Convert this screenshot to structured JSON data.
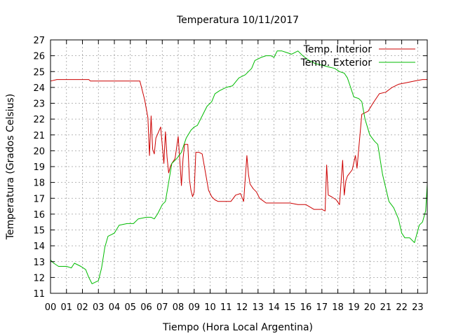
{
  "chart_data": {
    "type": "line",
    "title": "Temperatura 10/11/2017",
    "xlabel": "Tiempo (Hora Local Argentina)",
    "ylabel": "Temperatura (Grados Celsius)",
    "xlim": [
      0,
      23.6
    ],
    "ylim": [
      11,
      27
    ],
    "grid": true,
    "legend_position": "top-right",
    "x_ticks": [
      {
        "value": 0,
        "label": "00"
      },
      {
        "value": 1,
        "label": "01"
      },
      {
        "value": 2,
        "label": "02"
      },
      {
        "value": 3,
        "label": "03"
      },
      {
        "value": 4,
        "label": "04"
      },
      {
        "value": 5,
        "label": "05"
      },
      {
        "value": 6,
        "label": "06"
      },
      {
        "value": 7,
        "label": "07"
      },
      {
        "value": 8,
        "label": "08"
      },
      {
        "value": 9,
        "label": "09"
      },
      {
        "value": 10,
        "label": "10"
      },
      {
        "value": 11,
        "label": "11"
      },
      {
        "value": 12,
        "label": "12"
      },
      {
        "value": 13,
        "label": "13"
      },
      {
        "value": 14,
        "label": "14"
      },
      {
        "value": 15,
        "label": "15"
      },
      {
        "value": 16,
        "label": "16"
      },
      {
        "value": 17,
        "label": "17"
      },
      {
        "value": 18,
        "label": "18"
      },
      {
        "value": 19,
        "label": "19"
      },
      {
        "value": 20,
        "label": "20"
      },
      {
        "value": 21,
        "label": "21"
      },
      {
        "value": 22,
        "label": "22"
      },
      {
        "value": 23,
        "label": "23"
      }
    ],
    "y_ticks": [
      11,
      12,
      13,
      14,
      15,
      16,
      17,
      18,
      19,
      20,
      21,
      22,
      23,
      24,
      25,
      26,
      27
    ],
    "series": [
      {
        "name": "Temp. Interior",
        "color": "#cc0000",
        "x": [
          0,
          0.4,
          1.3,
          2.4,
          2.5,
          5.6,
          5.9,
          6.1,
          6.2,
          6.3,
          6.4,
          6.5,
          6.6,
          6.9,
          7.1,
          7.2,
          7.3,
          7.4,
          7.5,
          7.6,
          7.8,
          8.0,
          8.1,
          8.2,
          8.3,
          8.4,
          8.6,
          8.7,
          8.8,
          8.9,
          9.0,
          9.1,
          9.3,
          9.5,
          9.9,
          10.1,
          10.3,
          10.5,
          10.9,
          11.3,
          11.6,
          11.9,
          12.1,
          12.3,
          12.4,
          12.5,
          12.7,
          12.9,
          13.1,
          13.5,
          14.0,
          14.5,
          15.0,
          15.5,
          16.0,
          16.5,
          17.0,
          17.2,
          17.3,
          17.4,
          17.6,
          17.9,
          18.1,
          18.3,
          18.4,
          18.5,
          18.6,
          18.9,
          19.1,
          19.2,
          19.5,
          19.9,
          20.2,
          20.6,
          21.0,
          21.4,
          21.8,
          22.3,
          22.8,
          23.3,
          23.6
        ],
        "y": [
          24.4,
          24.5,
          24.5,
          24.5,
          24.4,
          24.4,
          23.2,
          22.1,
          19.7,
          22.2,
          20.1,
          19.8,
          20.8,
          21.5,
          19.2,
          21.2,
          19.6,
          18.6,
          19.0,
          19.2,
          19.5,
          20.9,
          19.4,
          17.8,
          19.5,
          20.4,
          20.4,
          18.2,
          17.5,
          17.1,
          17.4,
          19.9,
          19.9,
          19.8,
          17.5,
          17.1,
          16.9,
          16.8,
          16.8,
          16.8,
          17.2,
          17.3,
          16.8,
          19.7,
          18.5,
          17.9,
          17.6,
          17.4,
          17.0,
          16.7,
          16.7,
          16.7,
          16.7,
          16.6,
          16.6,
          16.3,
          16.3,
          16.2,
          19.1,
          17.2,
          17.1,
          16.9,
          16.6,
          19.4,
          17.2,
          18.1,
          18.4,
          18.8,
          19.7,
          18.9,
          22.3,
          22.5,
          23.0,
          23.6,
          23.7,
          24.0,
          24.2,
          24.3,
          24.4,
          24.5,
          24.5
        ]
      },
      {
        "name": "Temp. Exterior",
        "color": "#00bb00",
        "x": [
          0,
          0.2,
          0.5,
          1.0,
          1.3,
          1.5,
          1.9,
          2.2,
          2.4,
          2.6,
          2.8,
          3.0,
          3.2,
          3.4,
          3.6,
          3.8,
          4.0,
          4.3,
          4.8,
          5.2,
          5.5,
          6.0,
          6.3,
          6.5,
          6.7,
          7.0,
          7.2,
          7.4,
          7.6,
          7.9,
          8.2,
          8.5,
          8.8,
          9.0,
          9.2,
          9.4,
          9.8,
          10.1,
          10.3,
          10.6,
          11.0,
          11.4,
          11.8,
          12.2,
          12.6,
          12.8,
          13.2,
          13.5,
          13.8,
          14.0,
          14.2,
          14.5,
          14.8,
          15.1,
          15.5,
          15.8,
          16.2,
          16.6,
          17.0,
          17.4,
          17.8,
          18.1,
          18.4,
          18.6,
          18.8,
          19.0,
          19.3,
          19.5,
          19.7,
          20.0,
          20.3,
          20.5,
          20.8,
          21.2,
          21.5,
          21.8,
          22.0,
          22.2,
          22.5,
          22.8,
          23.1,
          23.3,
          23.5,
          23.6
        ],
        "y": [
          13.1,
          12.9,
          12.7,
          12.7,
          12.6,
          12.9,
          12.7,
          12.5,
          12.0,
          11.6,
          11.7,
          11.8,
          12.6,
          13.9,
          14.6,
          14.7,
          14.8,
          15.3,
          15.4,
          15.4,
          15.7,
          15.8,
          15.8,
          15.7,
          16.0,
          16.6,
          16.8,
          18.0,
          19.2,
          19.5,
          19.9,
          20.8,
          21.3,
          21.5,
          21.6,
          22.0,
          22.8,
          23.1,
          23.6,
          23.8,
          24.0,
          24.1,
          24.6,
          24.8,
          25.2,
          25.7,
          25.9,
          26.0,
          26.0,
          25.9,
          26.3,
          26.3,
          26.2,
          26.1,
          26.3,
          26.0,
          25.7,
          25.5,
          25.4,
          25.3,
          25.2,
          25.0,
          24.9,
          24.6,
          24.0,
          23.4,
          23.3,
          23.1,
          22.0,
          21.0,
          20.6,
          20.4,
          18.5,
          16.8,
          16.4,
          15.7,
          14.8,
          14.5,
          14.5,
          14.2,
          15.3,
          15.5,
          16.2,
          17.9
        ]
      }
    ]
  }
}
